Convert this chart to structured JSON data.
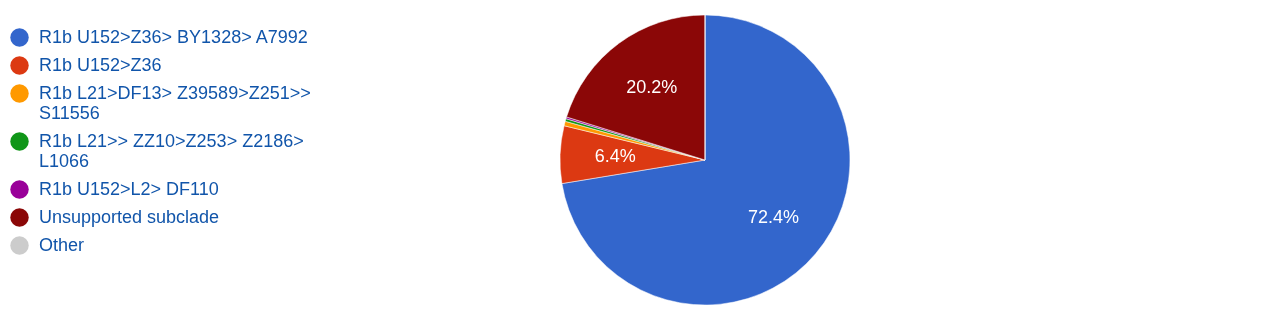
{
  "chart_data": {
    "type": "pie",
    "categories": [
      "R1b U152>Z36> BY1328> A7992",
      "R1b U152>Z36",
      "R1b L21>DF13> Z39589>Z251>> S11556",
      "R1b L21>> ZZ10>Z253> Z2186> L1066",
      "R1b U152>L2> DF110",
      "Unsupported subclade",
      "Other"
    ],
    "values": [
      72.4,
      6.4,
      0.5,
      0.3,
      0.2,
      20.2,
      0
    ],
    "colors": [
      "#3366cc",
      "#dc3912",
      "#ff9900",
      "#109618",
      "#990099",
      "#8b0707",
      "#cccccc"
    ],
    "value_labels": [
      "72.4%",
      "6.4%",
      null,
      null,
      null,
      "20.2%",
      null
    ],
    "legend": "left"
  }
}
